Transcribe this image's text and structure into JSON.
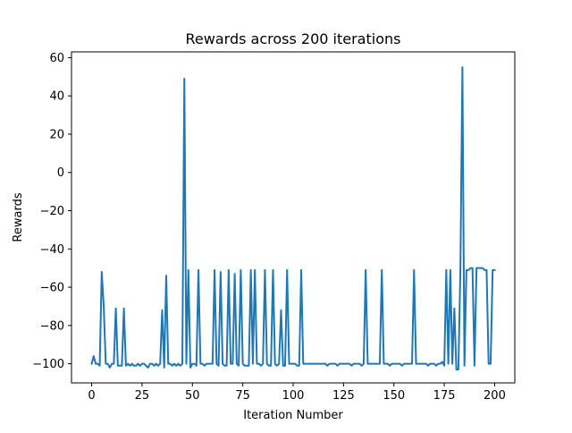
{
  "chart_data": {
    "type": "line",
    "title": "Rewards across 200 iterations",
    "xlabel": "Iteration Number",
    "ylabel": "Rewards",
    "xlim": [
      -10,
      210
    ],
    "ylim": [
      -110,
      63
    ],
    "x_ticks": [
      0,
      25,
      50,
      75,
      100,
      125,
      150,
      175,
      200
    ],
    "y_ticks": [
      -100,
      -80,
      -60,
      -40,
      -20,
      0,
      20,
      40,
      60
    ],
    "grid": false,
    "legend": "none",
    "series": [
      {
        "color": "#1f77b4",
        "points": [
          [
            0,
            -100
          ],
          [
            1,
            -96
          ],
          [
            2,
            -100
          ],
          [
            3,
            -100
          ],
          [
            4,
            -101
          ],
          [
            5,
            -52
          ],
          [
            6,
            -70
          ],
          [
            7,
            -100
          ],
          [
            8,
            -100
          ],
          [
            9,
            -102
          ],
          [
            10,
            -100
          ],
          [
            11,
            -100
          ],
          [
            12,
            -71
          ],
          [
            13,
            -101
          ],
          [
            14,
            -101
          ],
          [
            15,
            -101
          ],
          [
            16,
            -71
          ],
          [
            17,
            -101
          ],
          [
            18,
            -100
          ],
          [
            19,
            -101
          ],
          [
            20,
            -100
          ],
          [
            21,
            -101
          ],
          [
            22,
            -101
          ],
          [
            23,
            -100
          ],
          [
            24,
            -101
          ],
          [
            25,
            -100
          ],
          [
            26,
            -100
          ],
          [
            27,
            -101
          ],
          [
            28,
            -102
          ],
          [
            29,
            -100
          ],
          [
            30,
            -100
          ],
          [
            31,
            -101
          ],
          [
            32,
            -100
          ],
          [
            33,
            -101
          ],
          [
            34,
            -100
          ],
          [
            35,
            -72
          ],
          [
            36,
            -102
          ],
          [
            37,
            -54
          ],
          [
            38,
            -100
          ],
          [
            39,
            -100
          ],
          [
            40,
            -101
          ],
          [
            41,
            -100
          ],
          [
            42,
            -101
          ],
          [
            43,
            -100
          ],
          [
            44,
            -101
          ],
          [
            45,
            -100
          ],
          [
            46,
            49
          ],
          [
            47,
            -100
          ],
          [
            48,
            -51
          ],
          [
            49,
            -102
          ],
          [
            50,
            -100
          ],
          [
            51,
            -100
          ],
          [
            52,
            -101
          ],
          [
            53,
            -51
          ],
          [
            54,
            -100
          ],
          [
            55,
            -100
          ],
          [
            56,
            -101
          ],
          [
            57,
            -100
          ],
          [
            58,
            -100
          ],
          [
            59,
            -100
          ],
          [
            60,
            -100
          ],
          [
            61,
            -51
          ],
          [
            62,
            -100
          ],
          [
            63,
            -101
          ],
          [
            64,
            -52
          ],
          [
            65,
            -100
          ],
          [
            66,
            -101
          ],
          [
            67,
            -101
          ],
          [
            68,
            -51
          ],
          [
            69,
            -100
          ],
          [
            70,
            -100
          ],
          [
            71,
            -53
          ],
          [
            72,
            -100
          ],
          [
            73,
            -101
          ],
          [
            74,
            -51
          ],
          [
            75,
            -100
          ],
          [
            76,
            -101
          ],
          [
            77,
            -101
          ],
          [
            78,
            -101
          ],
          [
            79,
            -51
          ],
          [
            80,
            -100
          ],
          [
            81,
            -51
          ],
          [
            82,
            -100
          ],
          [
            83,
            -100
          ],
          [
            84,
            -101
          ],
          [
            85,
            -100
          ],
          [
            86,
            -51
          ],
          [
            87,
            -100
          ],
          [
            88,
            -101
          ],
          [
            89,
            -101
          ],
          [
            90,
            -51
          ],
          [
            91,
            -100
          ],
          [
            92,
            -101
          ],
          [
            93,
            -100
          ],
          [
            94,
            -72
          ],
          [
            95,
            -101
          ],
          [
            96,
            -101
          ],
          [
            97,
            -51
          ],
          [
            98,
            -100
          ],
          [
            99,
            -100
          ],
          [
            100,
            -100
          ],
          [
            101,
            -100
          ],
          [
            102,
            -101
          ],
          [
            103,
            -101
          ],
          [
            104,
            -51
          ],
          [
            105,
            -100
          ],
          [
            106,
            -100
          ],
          [
            107,
            -100
          ],
          [
            108,
            -100
          ],
          [
            109,
            -100
          ],
          [
            110,
            -100
          ],
          [
            111,
            -100
          ],
          [
            112,
            -100
          ],
          [
            113,
            -100
          ],
          [
            114,
            -100
          ],
          [
            115,
            -100
          ],
          [
            116,
            -100
          ],
          [
            117,
            -101
          ],
          [
            118,
            -100
          ],
          [
            119,
            -100
          ],
          [
            120,
            -100
          ],
          [
            121,
            -100
          ],
          [
            122,
            -101
          ],
          [
            123,
            -100
          ],
          [
            124,
            -100
          ],
          [
            125,
            -100
          ],
          [
            126,
            -100
          ],
          [
            127,
            -100
          ],
          [
            128,
            -100
          ],
          [
            129,
            -101
          ],
          [
            130,
            -100
          ],
          [
            131,
            -100
          ],
          [
            132,
            -100
          ],
          [
            133,
            -100
          ],
          [
            134,
            -101
          ],
          [
            135,
            -100
          ],
          [
            136,
            -51
          ],
          [
            137,
            -100
          ],
          [
            138,
            -100
          ],
          [
            139,
            -100
          ],
          [
            140,
            -100
          ],
          [
            141,
            -100
          ],
          [
            142,
            -100
          ],
          [
            143,
            -100
          ],
          [
            144,
            -51
          ],
          [
            145,
            -100
          ],
          [
            146,
            -100
          ],
          [
            147,
            -100
          ],
          [
            148,
            -101
          ],
          [
            149,
            -100
          ],
          [
            150,
            -100
          ],
          [
            151,
            -100
          ],
          [
            152,
            -100
          ],
          [
            153,
            -100
          ],
          [
            154,
            -101
          ],
          [
            155,
            -100
          ],
          [
            156,
            -100
          ],
          [
            157,
            -100
          ],
          [
            158,
            -100
          ],
          [
            159,
            -100
          ],
          [
            160,
            -51
          ],
          [
            161,
            -100
          ],
          [
            162,
            -100
          ],
          [
            163,
            -100
          ],
          [
            164,
            -100
          ],
          [
            165,
            -100
          ],
          [
            166,
            -100
          ],
          [
            167,
            -101
          ],
          [
            168,
            -100
          ],
          [
            169,
            -100
          ],
          [
            170,
            -100
          ],
          [
            171,
            -101
          ],
          [
            172,
            -100
          ],
          [
            173,
            -100
          ],
          [
            174,
            -99
          ],
          [
            175,
            -101
          ],
          [
            176,
            -51
          ],
          [
            177,
            -100
          ],
          [
            178,
            -51
          ],
          [
            179,
            -100
          ],
          [
            180,
            -71
          ],
          [
            181,
            -103
          ],
          [
            182,
            -103
          ],
          [
            183,
            -51
          ],
          [
            184,
            55
          ],
          [
            185,
            -101
          ],
          [
            186,
            -51
          ],
          [
            187,
            -51
          ],
          [
            188,
            -50
          ],
          [
            189,
            -50
          ],
          [
            190,
            -101
          ],
          [
            191,
            -50
          ],
          [
            192,
            -50
          ],
          [
            193,
            -50
          ],
          [
            194,
            -50
          ],
          [
            195,
            -51
          ],
          [
            196,
            -51
          ],
          [
            197,
            -100
          ],
          [
            198,
            -100
          ],
          [
            199,
            -51
          ],
          [
            200,
            -51
          ]
        ]
      }
    ]
  }
}
